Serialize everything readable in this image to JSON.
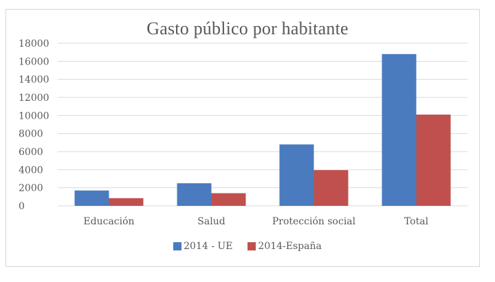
{
  "chart_data": {
    "type": "bar",
    "title": "Gasto público por habitante",
    "xlabel": "",
    "ylabel": "",
    "categories": [
      "Educación",
      "Salud",
      "Protección social",
      "Total"
    ],
    "series": [
      {
        "name": "2014 - UE",
        "color": "#4a7bbf",
        "values": [
          1700,
          2500,
          6800,
          16800
        ]
      },
      {
        "name": "2014-España",
        "color": "#c0504d",
        "values": [
          850,
          1400,
          3950,
          10100
        ]
      }
    ],
    "ylim": [
      0,
      18000
    ],
    "yticks": [
      "0",
      "2000",
      "4000",
      "6000",
      "8000",
      "10000",
      "12000",
      "14000",
      "16000",
      "18000"
    ],
    "grid": true,
    "legend": "bottom"
  }
}
